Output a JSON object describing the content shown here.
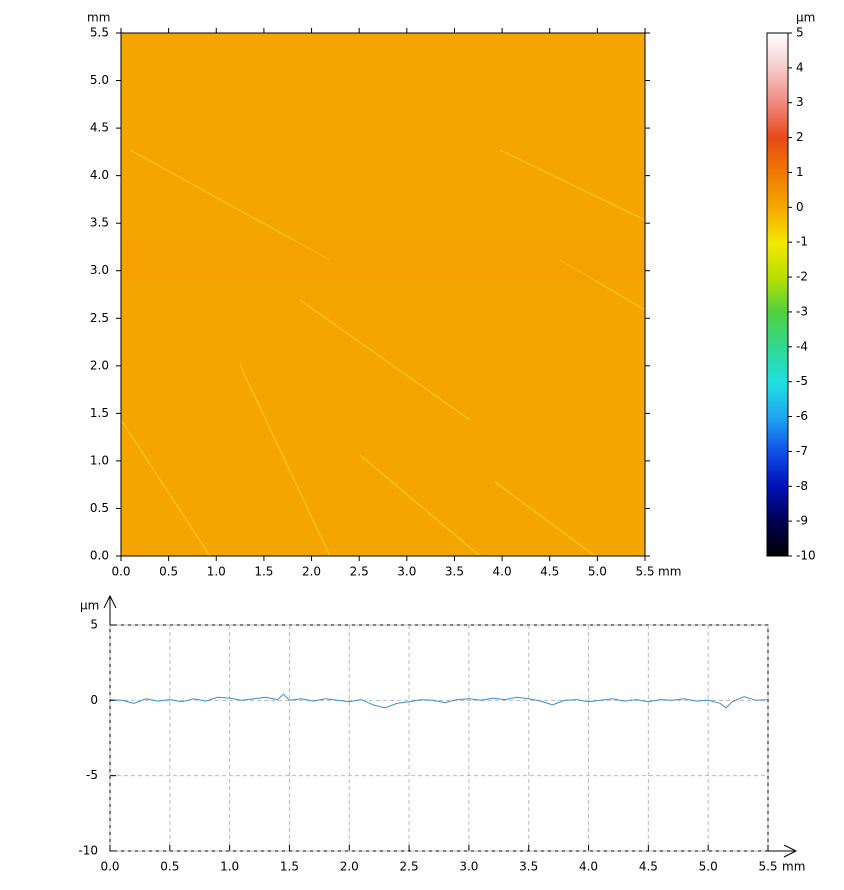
{
  "chart_data": [
    {
      "type": "heatmap",
      "x_unit": "mm",
      "y_unit": "mm",
      "xlim": [
        0,
        5.5
      ],
      "ylim": [
        0,
        5.5
      ],
      "xticks": [
        {
          "value": 0,
          "label": "0.0"
        },
        0.5,
        {
          "value": 1,
          "label": "1.0"
        },
        1.5,
        {
          "value": 2,
          "label": "2.0"
        },
        2.5,
        {
          "value": 3,
          "label": "3.0"
        },
        3.5,
        {
          "value": 4,
          "label": "4.0"
        },
        4.5,
        {
          "value": 5,
          "label": "5.0"
        },
        5.5
      ],
      "yticks": [
        {
          "value": 0,
          "label": "0.0"
        },
        0.5,
        {
          "value": 1,
          "label": "1.0"
        },
        1.5,
        {
          "value": 2,
          "label": "2.0"
        },
        2.5,
        {
          "value": 3,
          "label": "3.0"
        },
        3.5,
        {
          "value": 4,
          "label": "4.0"
        },
        4.5,
        {
          "value": 5,
          "label": "5.0"
        },
        5.5
      ],
      "colorbar": {
        "unit": "μm",
        "lim": [
          -10,
          5
        ],
        "ticks": [
          5,
          4,
          3,
          2,
          1,
          0,
          -1,
          -2,
          -3,
          -4,
          -5,
          -6,
          -7,
          -8,
          -9,
          -10
        ],
        "colors": [
          "#ffffff",
          "#f6cccc",
          "#f08a80",
          "#e84a18",
          "#f07800",
          "#f5a800",
          "#f5e600",
          "#b8e000",
          "#50d040",
          "#30d890",
          "#20e0e0",
          "#20a8f0",
          "#1050e8",
          "#0010b8",
          "#000050",
          "#000000"
        ]
      }
    },
    {
      "type": "line",
      "x_unit": "mm",
      "y_unit": "μm",
      "xlim": [
        0,
        5.5
      ],
      "ylim": [
        -10,
        5
      ],
      "xticks": [
        {
          "value": 0,
          "label": "0.0"
        },
        0.5,
        {
          "value": 1,
          "label": "1.0"
        },
        1.5,
        {
          "value": 2,
          "label": "2.0"
        },
        2.5,
        {
          "value": 3,
          "label": "3.0"
        },
        3.5,
        {
          "value": 4,
          "label": "4.0"
        },
        4.5,
        {
          "value": 5,
          "label": "5.0"
        },
        5.5
      ],
      "yticks": [
        5,
        0,
        -5,
        -10
      ],
      "grid": true,
      "color": "#3a8fd0",
      "x": [
        0,
        0.1,
        0.2,
        0.3,
        0.4,
        0.5,
        0.6,
        0.7,
        0.8,
        0.9,
        1,
        1.1,
        1.2,
        1.3,
        1.4,
        1.45,
        1.5,
        1.6,
        1.7,
        1.8,
        1.9,
        2,
        2.1,
        2.2,
        2.3,
        2.4,
        2.5,
        2.6,
        2.7,
        2.8,
        2.9,
        3,
        3.1,
        3.2,
        3.3,
        3.4,
        3.5,
        3.6,
        3.7,
        3.8,
        3.9,
        4,
        4.1,
        4.2,
        4.3,
        4.4,
        4.5,
        4.6,
        4.7,
        4.8,
        4.9,
        5,
        5.1,
        5.15,
        5.2,
        5.3,
        5.4,
        5.5
      ],
      "values": [
        0.05,
        0,
        -0.2,
        0.1,
        -0.05,
        0.05,
        -0.1,
        0.1,
        -0.05,
        0.2,
        0.15,
        0,
        0.1,
        0.2,
        0.05,
        0.4,
        0,
        0.1,
        -0.05,
        0.1,
        0,
        -0.1,
        0.05,
        -0.3,
        -0.5,
        -0.2,
        -0.1,
        0.05,
        0,
        -0.15,
        0.05,
        0.1,
        0,
        0.15,
        0.05,
        0.2,
        0.1,
        -0.05,
        -0.3,
        0,
        0.05,
        -0.1,
        0,
        0.1,
        -0.05,
        0.05,
        -0.1,
        0.05,
        0,
        0.1,
        -0.05,
        0,
        -0.2,
        -0.5,
        -0.1,
        0.25,
        0,
        0.05
      ]
    }
  ]
}
